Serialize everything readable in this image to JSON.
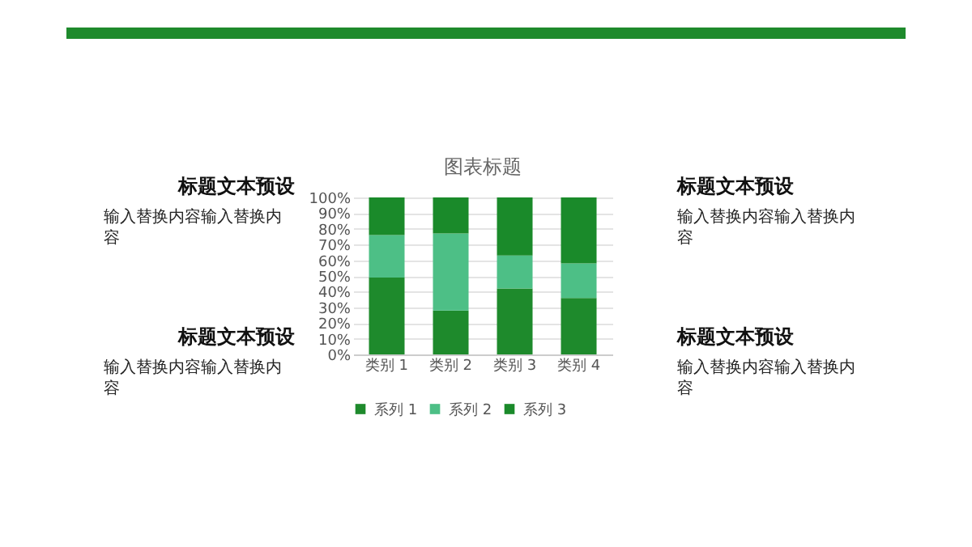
{
  "chart_data": {
    "type": "bar",
    "title": "图表标题",
    "stacked": true,
    "categories": [
      "类别 1",
      "类别 2",
      "类别 3",
      "类别 4"
    ],
    "series": [
      {
        "name": "系列 1",
        "color": "#1e8a2c",
        "values": [
          49,
          28,
          42,
          36
        ]
      },
      {
        "name": "系列 2",
        "color": "#4dbf86",
        "values": [
          27,
          49,
          21,
          22
        ]
      },
      {
        "name": "系列 3",
        "color": "#1a8a2a",
        "values": [
          24,
          23,
          37,
          42
        ]
      }
    ],
    "ylim": [
      0,
      100
    ],
    "yticks": [
      {
        "value": 0,
        "label": "0%"
      },
      {
        "value": 10,
        "label": "10%"
      },
      {
        "value": 20,
        "label": "20%"
      },
      {
        "value": 30,
        "label": "30%"
      },
      {
        "value": 40,
        "label": "40%"
      },
      {
        "value": 50,
        "label": "50%"
      },
      {
        "value": 60,
        "label": "60%"
      },
      {
        "value": 70,
        "label": "70%"
      },
      {
        "value": 80,
        "label": "80%"
      },
      {
        "value": 90,
        "label": "90%"
      },
      {
        "value": 100,
        "label": "100%"
      }
    ],
    "grid": "y",
    "legend": "bottom",
    "annotations": [
      "标题文本预设",
      "输入替换内容输入替换内容",
      "标题文本预设",
      "输入替换内容输入替换内容",
      "标题文本预设",
      "输入替换内容输入替换内容",
      "标题文本预设",
      "输入替换内容输入替换内容"
    ]
  }
}
